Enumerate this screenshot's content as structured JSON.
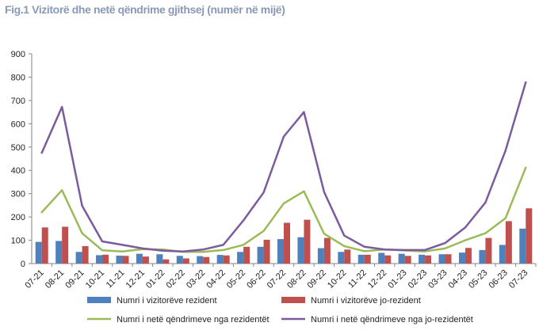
{
  "chart_data": {
    "type": "bar",
    "title": "Fig.1 Vizitorë dhe netë qëndrime gjithsej (numër në mijë)",
    "categories": [
      "07-21",
      "08-21",
      "09-21",
      "10-21",
      "11-21",
      "12-21",
      "01-22",
      "02-22",
      "03-22",
      "04-22",
      "05-22",
      "06-22",
      "07-22",
      "08-22",
      "09-22",
      "10-22",
      "11-22",
      "12-22",
      "01-23",
      "02-23",
      "03-23",
      "04-23",
      "05-23",
      "06-23",
      "07-23"
    ],
    "ylim": [
      0,
      900
    ],
    "yticks": [
      0,
      100,
      200,
      300,
      400,
      500,
      600,
      700,
      800,
      900
    ],
    "grid": false,
    "legend_position": "bottom",
    "series": [
      {
        "name": "Numri i vizitorëve rezident",
        "kind": "bar",
        "color": "#4f81bd",
        "values": [
          93,
          97,
          50,
          36,
          34,
          42,
          40,
          33,
          32,
          37,
          50,
          72,
          105,
          113,
          66,
          50,
          38,
          46,
          42,
          38,
          40,
          47,
          58,
          80,
          150
        ]
      },
      {
        "name": "Numri i vizitorëve jo-rezident",
        "kind": "bar",
        "color": "#c0504d",
        "values": [
          155,
          158,
          75,
          38,
          33,
          30,
          18,
          22,
          28,
          35,
          72,
          102,
          175,
          188,
          110,
          60,
          38,
          35,
          33,
          35,
          40,
          67,
          110,
          182,
          237
        ]
      },
      {
        "name": "Numri i netë qëndrimeve nga rezidentët",
        "kind": "line",
        "color": "#9bbb59",
        "values": [
          220,
          315,
          130,
          57,
          52,
          62,
          60,
          50,
          50,
          58,
          80,
          140,
          258,
          310,
          128,
          75,
          53,
          60,
          56,
          52,
          65,
          100,
          130,
          195,
          412
        ]
      },
      {
        "name": "Numri i netë qëndrimeve nga jo-rezidentët",
        "kind": "line",
        "color": "#7b5b9e",
        "values": [
          475,
          672,
          248,
          95,
          80,
          65,
          55,
          52,
          60,
          80,
          185,
          305,
          545,
          650,
          307,
          120,
          72,
          60,
          58,
          58,
          88,
          155,
          262,
          485,
          778
        ]
      }
    ]
  }
}
